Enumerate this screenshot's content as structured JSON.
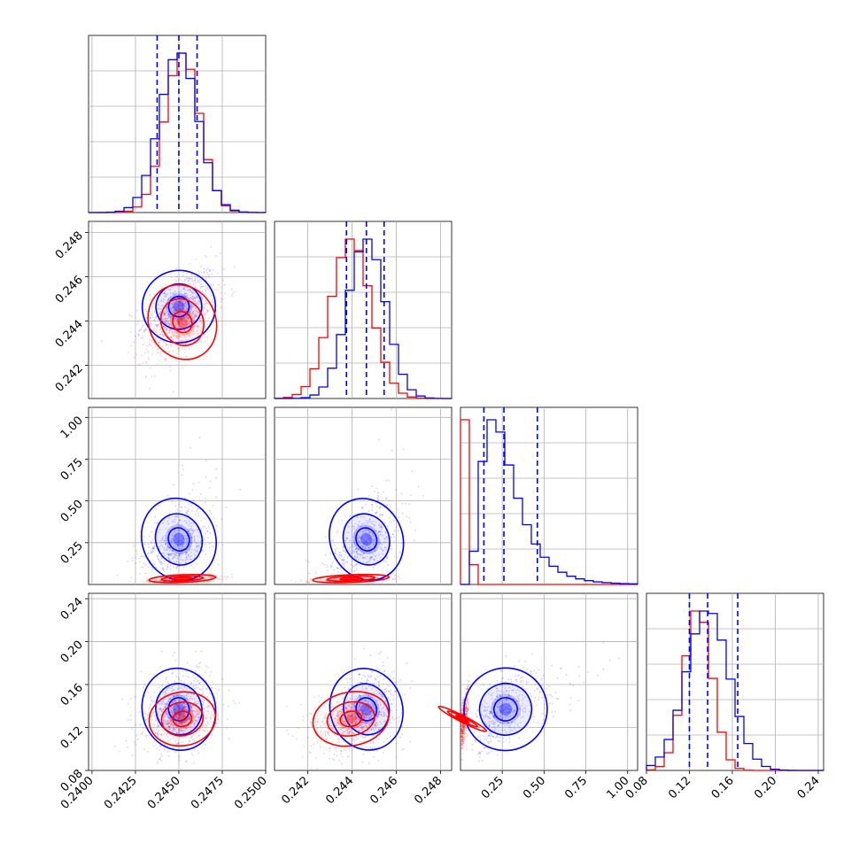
{
  "colors": {
    "blue": "#0000ff",
    "red": "#ff0000",
    "grid": "#b0b0b0"
  },
  "chart_data": {
    "type": "corner",
    "grid": true,
    "series": [
      {
        "color": "#0000ff",
        "marginals": {
          "p0": {
            "mean": 0.245,
            "sd": 0.0011,
            "quantiles": [
              0.24375,
              0.245,
              0.24605
            ]
          },
          "p1": {
            "mean": 0.24465,
            "sd": 0.00085,
            "quantiles": [
              0.24375,
              0.24465,
              0.24545
            ]
          },
          "p2": {
            "quantiles": [
              0.14,
              0.26,
              0.46
            ]
          },
          "p3": {
            "mean": 0.137,
            "sd": 0.02,
            "quantiles": [
              0.12,
              0.137,
              0.165
            ]
          }
        }
      },
      {
        "color": "#ff0000",
        "marginals": {
          "p0": {
            "mean": 0.2452,
            "sd": 0.001
          },
          "p1": {
            "mean": 0.24395,
            "sd": 0.0009
          },
          "p2": {
            "mean": 0.015,
            "sd": 0.015
          },
          "p3": {
            "mean": 0.128,
            "sd": 0.013
          }
        }
      }
    ],
    "axes": {
      "p0": {
        "range": [
          0.2398,
          0.25
        ],
        "ticks": [
          "0.2400",
          "0.2425",
          "0.2450",
          "0.2475",
          "0.2500"
        ],
        "tick_values": [
          0.24,
          0.2425,
          0.245,
          0.2475,
          0.25
        ]
      },
      "p1": {
        "range": [
          0.2405,
          0.2485
        ],
        "ticks": [
          "0.242",
          "0.244",
          "0.246",
          "0.248"
        ],
        "tick_values": [
          0.242,
          0.244,
          0.246,
          0.248
        ]
      },
      "p2": {
        "range": [
          0.0,
          1.06
        ],
        "ticks": [
          "0.25",
          "0.50",
          "0.75",
          "1.00"
        ],
        "tick_values": [
          0.25,
          0.5,
          0.75,
          1.0
        ]
      },
      "p3": {
        "range": [
          0.08,
          0.245
        ],
        "ticks": [
          "0.08",
          "0.12",
          "0.16",
          "0.20",
          "0.24"
        ],
        "tick_values": [
          0.08,
          0.12,
          0.16,
          0.2,
          0.24
        ]
      }
    }
  }
}
